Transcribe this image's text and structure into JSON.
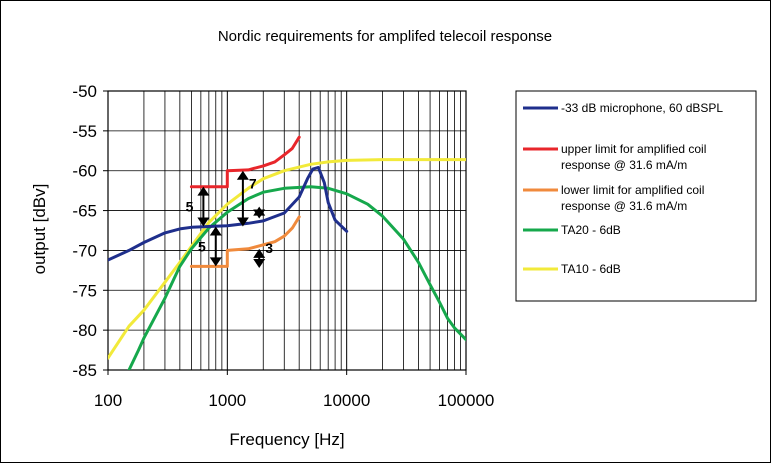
{
  "chart_data": {
    "type": "line",
    "title": "Nordic requirements for amplifed telecoil response",
    "xlabel": "Frequency [Hz]",
    "ylabel": "output [dBv]",
    "x_scale": "log",
    "xlim": [
      100,
      100000
    ],
    "ylim": [
      -85,
      -50
    ],
    "x_ticks": [
      100,
      1000,
      10000,
      100000
    ],
    "x_tick_labels": [
      "100",
      "1000",
      "10000",
      "100000"
    ],
    "y_ticks": [
      -50,
      -55,
      -60,
      -65,
      -70,
      -75,
      -80,
      -85
    ],
    "y_tick_labels": [
      "-50",
      "-55",
      "-60",
      "-65",
      "-70",
      "-75",
      "-80",
      "-85"
    ],
    "grid": true,
    "legend_position": "right",
    "series": [
      {
        "name": "-33 dB microphone, 60 dBSPL",
        "color": "#1f2f8c",
        "points": [
          [
            100,
            -71.2
          ],
          [
            150,
            -70.0
          ],
          [
            200,
            -69.0
          ],
          [
            300,
            -67.8
          ],
          [
            400,
            -67.3
          ],
          [
            500,
            -67.1
          ],
          [
            700,
            -67.0
          ],
          [
            1000,
            -66.9
          ],
          [
            1500,
            -66.6
          ],
          [
            2000,
            -66.3
          ],
          [
            3000,
            -65.3
          ],
          [
            4000,
            -63.3
          ],
          [
            4700,
            -61.0
          ],
          [
            5200,
            -59.8
          ],
          [
            5800,
            -59.6
          ],
          [
            6500,
            -61.5
          ],
          [
            7000,
            -64.0
          ],
          [
            8000,
            -66.2
          ],
          [
            10000,
            -67.6
          ]
        ]
      },
      {
        "name": "upper limit for amplified coil response @ 31.6 mA/m",
        "color": "#e8262b",
        "points": [
          [
            500,
            -62.0
          ],
          [
            1000,
            -62.0
          ],
          [
            1000,
            -60.0
          ],
          [
            1500,
            -59.9
          ],
          [
            2000,
            -59.4
          ],
          [
            2500,
            -58.9
          ],
          [
            3000,
            -58.0
          ],
          [
            3500,
            -57.2
          ],
          [
            4000,
            -55.8
          ]
        ]
      },
      {
        "name": "lower limit for amplified coil response @ 31.6 mA/m",
        "color": "#f08a3c",
        "points": [
          [
            500,
            -72.0
          ],
          [
            1000,
            -72.0
          ],
          [
            1000,
            -70.0
          ],
          [
            1500,
            -69.8
          ],
          [
            2000,
            -69.3
          ],
          [
            2500,
            -68.9
          ],
          [
            3000,
            -68.2
          ],
          [
            3500,
            -67.2
          ],
          [
            4000,
            -65.8
          ]
        ]
      },
      {
        "name": "TA20 - 6dB",
        "color": "#16a84c",
        "points": [
          [
            150,
            -85.0
          ],
          [
            180,
            -82.5
          ],
          [
            200,
            -81.0
          ],
          [
            300,
            -76.0
          ],
          [
            400,
            -72.0
          ],
          [
            500,
            -69.8
          ],
          [
            700,
            -67.2
          ],
          [
            1000,
            -65.2
          ],
          [
            1500,
            -63.5
          ],
          [
            2000,
            -62.7
          ],
          [
            3000,
            -62.2
          ],
          [
            5000,
            -62.0
          ],
          [
            7000,
            -62.2
          ],
          [
            10000,
            -62.9
          ],
          [
            15000,
            -64.2
          ],
          [
            20000,
            -65.7
          ],
          [
            30000,
            -68.6
          ],
          [
            40000,
            -71.5
          ],
          [
            50000,
            -74.3
          ],
          [
            60000,
            -76.5
          ],
          [
            70000,
            -78.5
          ],
          [
            80000,
            -79.7
          ],
          [
            100000,
            -81.2
          ]
        ]
      },
      {
        "name": "TA10 - 6dB",
        "color": "#f2ea3a",
        "points": [
          [
            100,
            -83.5
          ],
          [
            150,
            -79.5
          ],
          [
            200,
            -77.5
          ],
          [
            300,
            -74.0
          ],
          [
            400,
            -71.5
          ],
          [
            500,
            -69.5
          ],
          [
            700,
            -66.5
          ],
          [
            1000,
            -64.2
          ],
          [
            1500,
            -62.2
          ],
          [
            2000,
            -61.0
          ],
          [
            3000,
            -60.0
          ],
          [
            5000,
            -59.2
          ],
          [
            7000,
            -58.9
          ],
          [
            10000,
            -58.7
          ],
          [
            20000,
            -58.6
          ],
          [
            50000,
            -58.6
          ],
          [
            100000,
            -58.6
          ]
        ]
      }
    ],
    "annotations": [
      {
        "label": "5",
        "x_from": 630,
        "y_from": -62.0,
        "x_to": 630,
        "y_to": -67.0
      },
      {
        "label": "5",
        "x_from": 800,
        "y_from": -67.0,
        "x_to": 800,
        "y_to": -72.0
      },
      {
        "label": "7",
        "x_from": 1350,
        "y_from": -60.0,
        "x_to": 1350,
        "y_to": -67.0
      },
      {
        "label": "",
        "x_from": 1850,
        "y_from": -64.5,
        "x_to": 1850,
        "y_to": -66.0
      },
      {
        "label": "3",
        "x_from": 1850,
        "y_from": -69.8,
        "x_to": 1850,
        "y_to": -72.2
      }
    ]
  }
}
